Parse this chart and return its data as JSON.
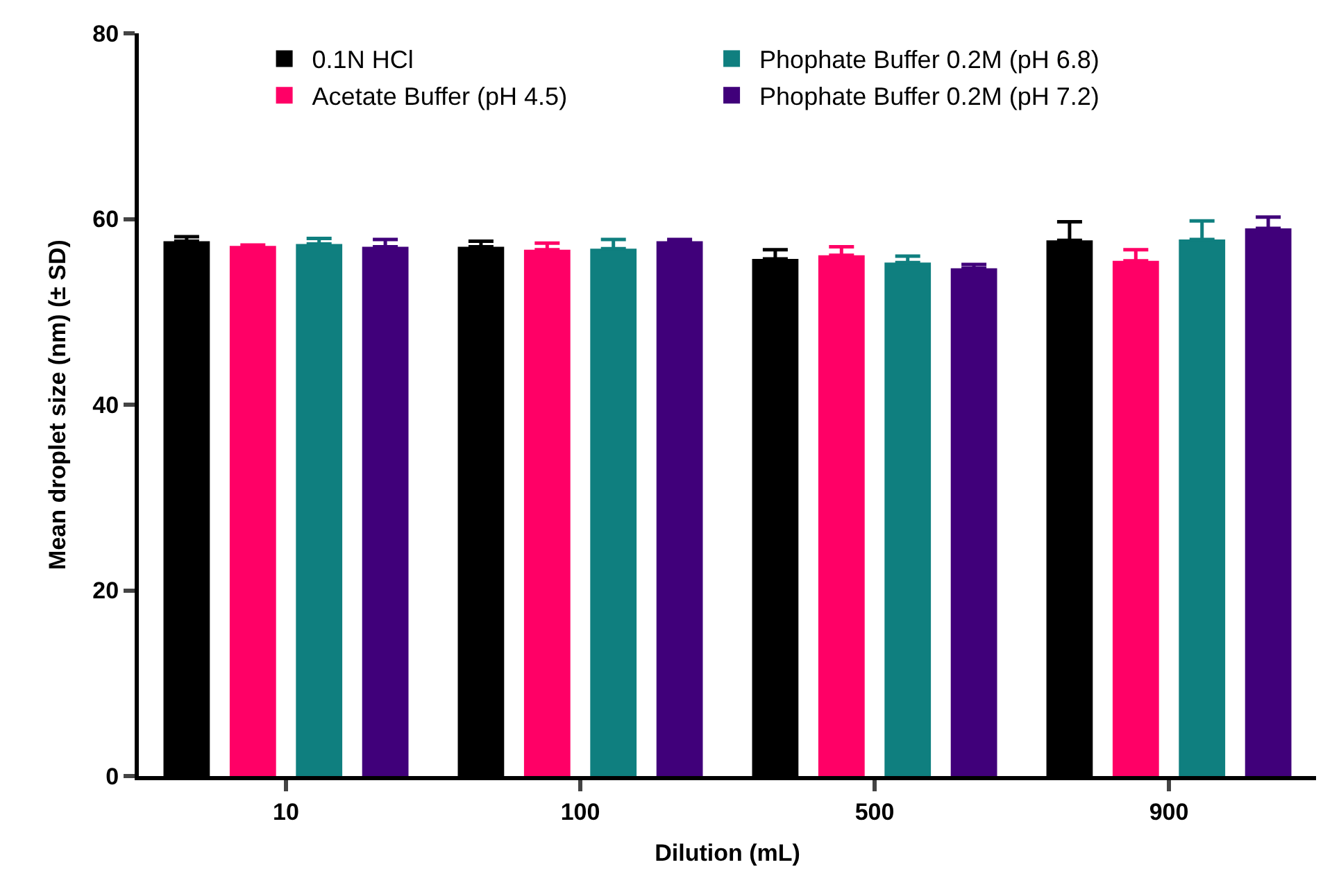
{
  "chart_data": {
    "type": "bar",
    "xlabel": "Dilution (mL)",
    "ylabel": "Mean droplet size (nm) (± SD)",
    "categories": [
      "10",
      "100",
      "500",
      "900"
    ],
    "series": [
      {
        "name": "0.1N HCl",
        "color": "#000000",
        "values": [
          57.6,
          57.0,
          55.7,
          57.7
        ],
        "errors": [
          [
            57.6,
            58.1
          ],
          [
            57.0,
            57.6
          ],
          [
            55.7,
            56.7
          ],
          [
            57.7,
            59.7
          ]
        ]
      },
      {
        "name": "Acetate Buffer (pH 4.5)",
        "color": "#ff0066",
        "values": [
          57.1,
          56.7,
          56.1,
          55.5
        ],
        "errors": [
          [
            57.1,
            57.2
          ],
          [
            56.7,
            57.4
          ],
          [
            56.1,
            57.0
          ],
          [
            55.5,
            56.7
          ]
        ]
      },
      {
        "name": "Phophate Buffer 0.2M (pH 6.8)",
        "color": "#0f7f7f",
        "values": [
          57.3,
          56.8,
          55.3,
          57.8
        ],
        "errors": [
          [
            57.3,
            57.9
          ],
          [
            56.8,
            57.8
          ],
          [
            55.3,
            56.0
          ],
          [
            57.8,
            59.8
          ]
        ]
      },
      {
        "name": "Phophate Buffer 0.2M (pH 7.2)",
        "color": "#40007a",
        "values": [
          57.0,
          57.6,
          54.7,
          59.0
        ],
        "errors": [
          [
            57.0,
            57.8
          ],
          [
            57.6,
            57.8
          ],
          [
            54.7,
            55.1
          ],
          [
            59.0,
            60.2
          ]
        ]
      }
    ],
    "ylim": [
      0,
      80
    ],
    "yticks": [
      0,
      20,
      40,
      60,
      80
    ],
    "legend": "top"
  }
}
